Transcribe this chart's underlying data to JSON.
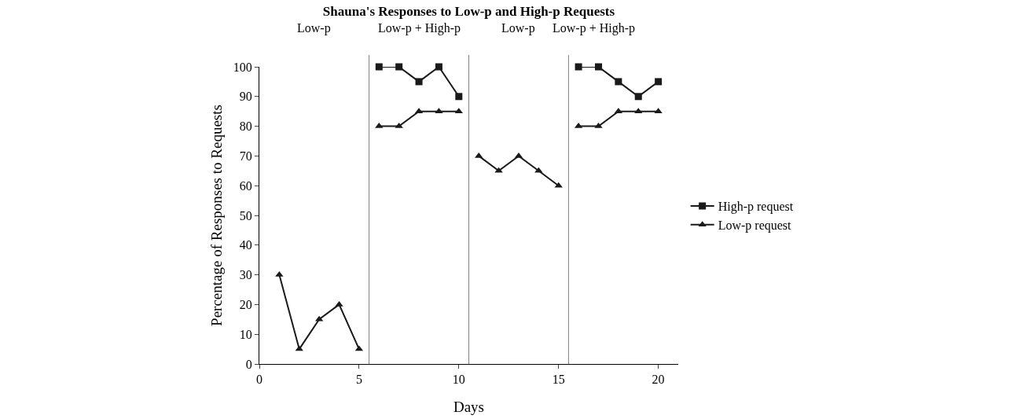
{
  "chart_data": {
    "type": "line",
    "title": "Shauna's Responses to Low-p and High-p Requests",
    "xlabel": "Days",
    "ylabel": "Percentage of Responses to Requests",
    "annotations": [
      "Low-p",
      "Low-p + High-p",
      "Low-p",
      "Low-p + High-p"
    ],
    "series": [
      {
        "name": "High-p request",
        "color": "#1a1a1a",
        "marker": "square",
        "x": [
          6,
          7,
          8,
          9,
          10,
          15.5,
          16,
          17,
          18,
          19,
          20
        ],
        "values": [
          100,
          100,
          95,
          100,
          90,
          null,
          100,
          100,
          95,
          90,
          95
        ]
      },
      {
        "name": "Low-p request",
        "color": "#1a1a1a",
        "marker": "triangle",
        "x": [
          1,
          2,
          3,
          4,
          5,
          5.5,
          6,
          7,
          8,
          9,
          10,
          10.5,
          11,
          12,
          13,
          14,
          15,
          15.5,
          16,
          17,
          18,
          19,
          20
        ],
        "values": [
          30,
          5,
          15,
          20,
          5,
          null,
          80,
          80,
          85,
          85,
          85,
          null,
          70,
          65,
          70,
          65,
          60,
          null,
          80,
          80,
          85,
          85,
          85
        ]
      }
    ],
    "ref_lines": [
      {
        "axis": "x",
        "value": 5.5,
        "color": "#808080"
      },
      {
        "axis": "x",
        "value": 10.5,
        "color": "#808080"
      },
      {
        "axis": "x",
        "value": 15.5,
        "color": "#808080"
      }
    ],
    "xlim": [
      0,
      21
    ],
    "xticks": [
      0,
      5,
      10,
      15,
      20
    ],
    "ylim": [
      0,
      100
    ],
    "yticks": [
      0,
      10,
      20,
      30,
      40,
      50,
      60,
      70,
      80,
      90,
      100
    ],
    "grid": false,
    "legend": "right",
    "line_style": "solid"
  }
}
